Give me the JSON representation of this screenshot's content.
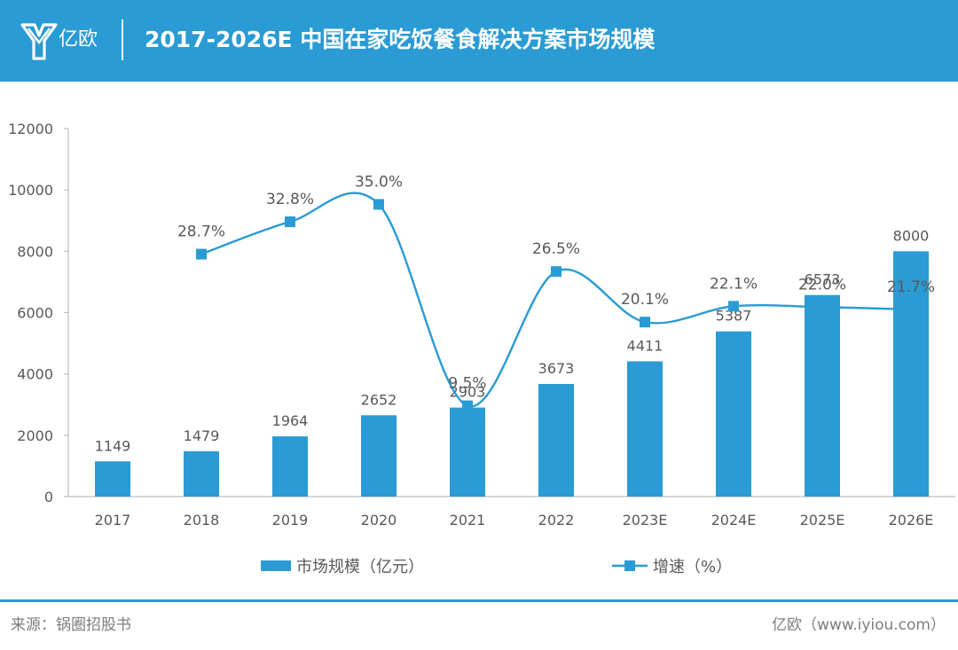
{
  "header": {
    "logo_text": "亿欧",
    "title": "2017-2026E 中国在家吃饭餐食解决方案市场规模"
  },
  "colors": {
    "brand": "#2a9bd4",
    "bar": "#2a9bd4",
    "line": "#2a9bd4",
    "text": "#595959",
    "axis": "#bfbfbf"
  },
  "chart_data": {
    "type": "bar",
    "title": "2017-2026E 中国在家吃饭餐食解决方案市场规模",
    "categories": [
      "2017",
      "2018",
      "2019",
      "2020",
      "2021",
      "2022",
      "2023E",
      "2024E",
      "2025E",
      "2026E"
    ],
    "series": [
      {
        "name": "市场规模（亿元）",
        "type": "bar",
        "values": [
          1149,
          1479,
          1964,
          2652,
          2903,
          3673,
          4411,
          5387,
          6573,
          8000
        ],
        "labels": [
          "1149",
          "1479",
          "1964",
          "2652",
          "2903",
          "3673",
          "4411",
          "5387",
          "6573",
          "8000"
        ]
      },
      {
        "name": "增速（%）",
        "type": "line",
        "values": [
          null,
          28.7,
          32.8,
          35.0,
          9.5,
          26.5,
          20.1,
          22.1,
          22.0,
          21.7
        ],
        "labels": [
          "",
          "28.7%",
          "32.8%",
          "35.0%",
          "9.5%",
          "26.5%",
          "20.1%",
          "22.1%",
          "22.0%",
          "21.7%"
        ],
        "secondary_axis_range": [
          -2.0,
          44.6
        ]
      }
    ],
    "ylim": [
      0,
      12000
    ],
    "yticks": [
      "0",
      "2000",
      "4000",
      "6000",
      "8000",
      "10000",
      "12000"
    ],
    "xlabel": "",
    "ylabel": "",
    "grid": false,
    "legend": [
      "市场规模（亿元）",
      "增速（%）"
    ],
    "legend_position": "bottom"
  },
  "footer": {
    "source": "来源：锅圈招股书",
    "credit": "亿欧（www.iyiou.com）"
  }
}
